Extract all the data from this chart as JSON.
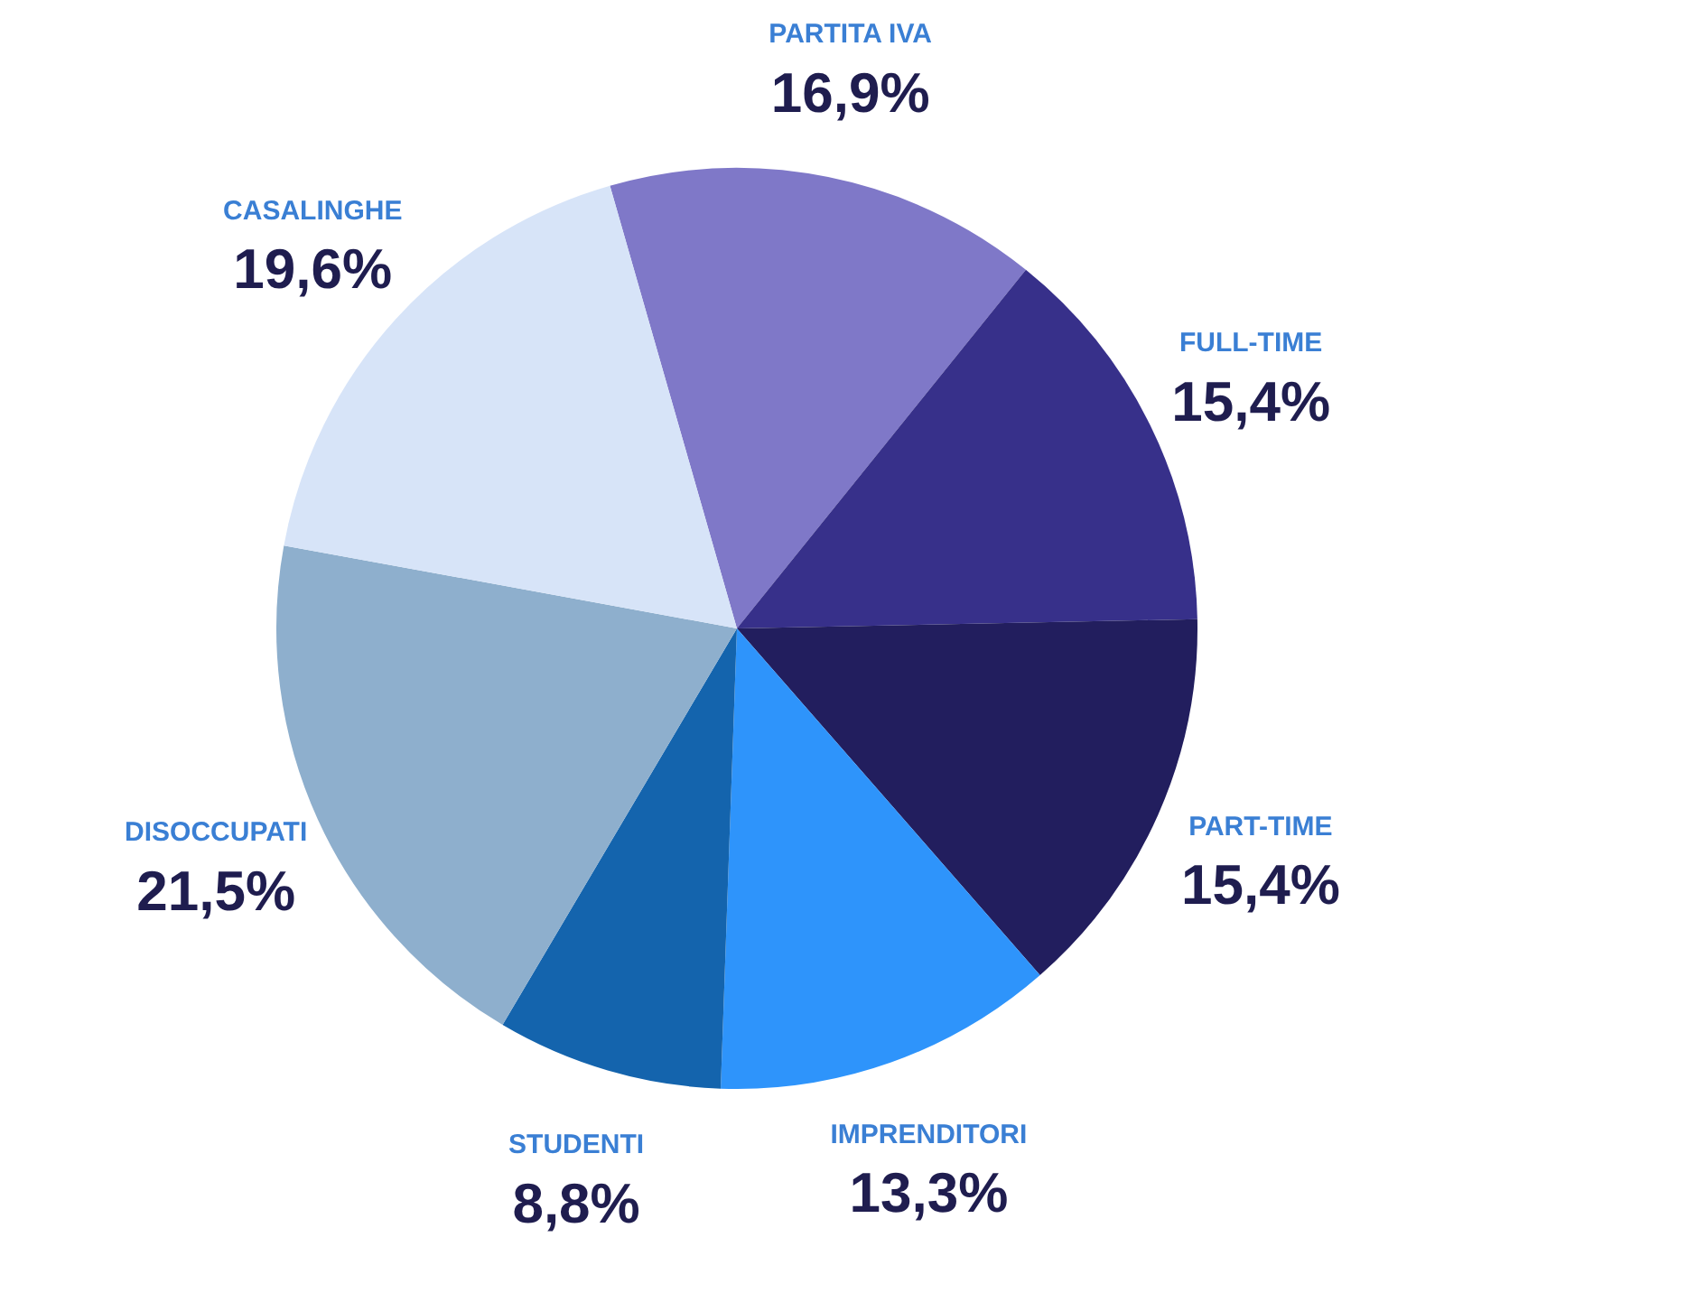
{
  "chart_data": {
    "type": "pie",
    "categories": [
      "PARTITA IVA",
      "FULL-TIME",
      "PART-TIME",
      "IMPRENDITORI",
      "STUDENTI",
      "DISOCCUPATI",
      "CASALINGHE"
    ],
    "values": [
      16.9,
      15.4,
      15.4,
      13.3,
      8.8,
      21.5,
      19.6
    ],
    "colors": [
      "#7f78c8",
      "#37308a",
      "#221e5e",
      "#2e94fb",
      "#1464ad",
      "#8eafcd",
      "#d7e4f8"
    ],
    "value_labels": [
      "16,9%",
      "15,4%",
      "15,4%",
      "13,3%",
      "8,8%",
      "21,5%",
      "19,6%"
    ],
    "legend": false
  }
}
